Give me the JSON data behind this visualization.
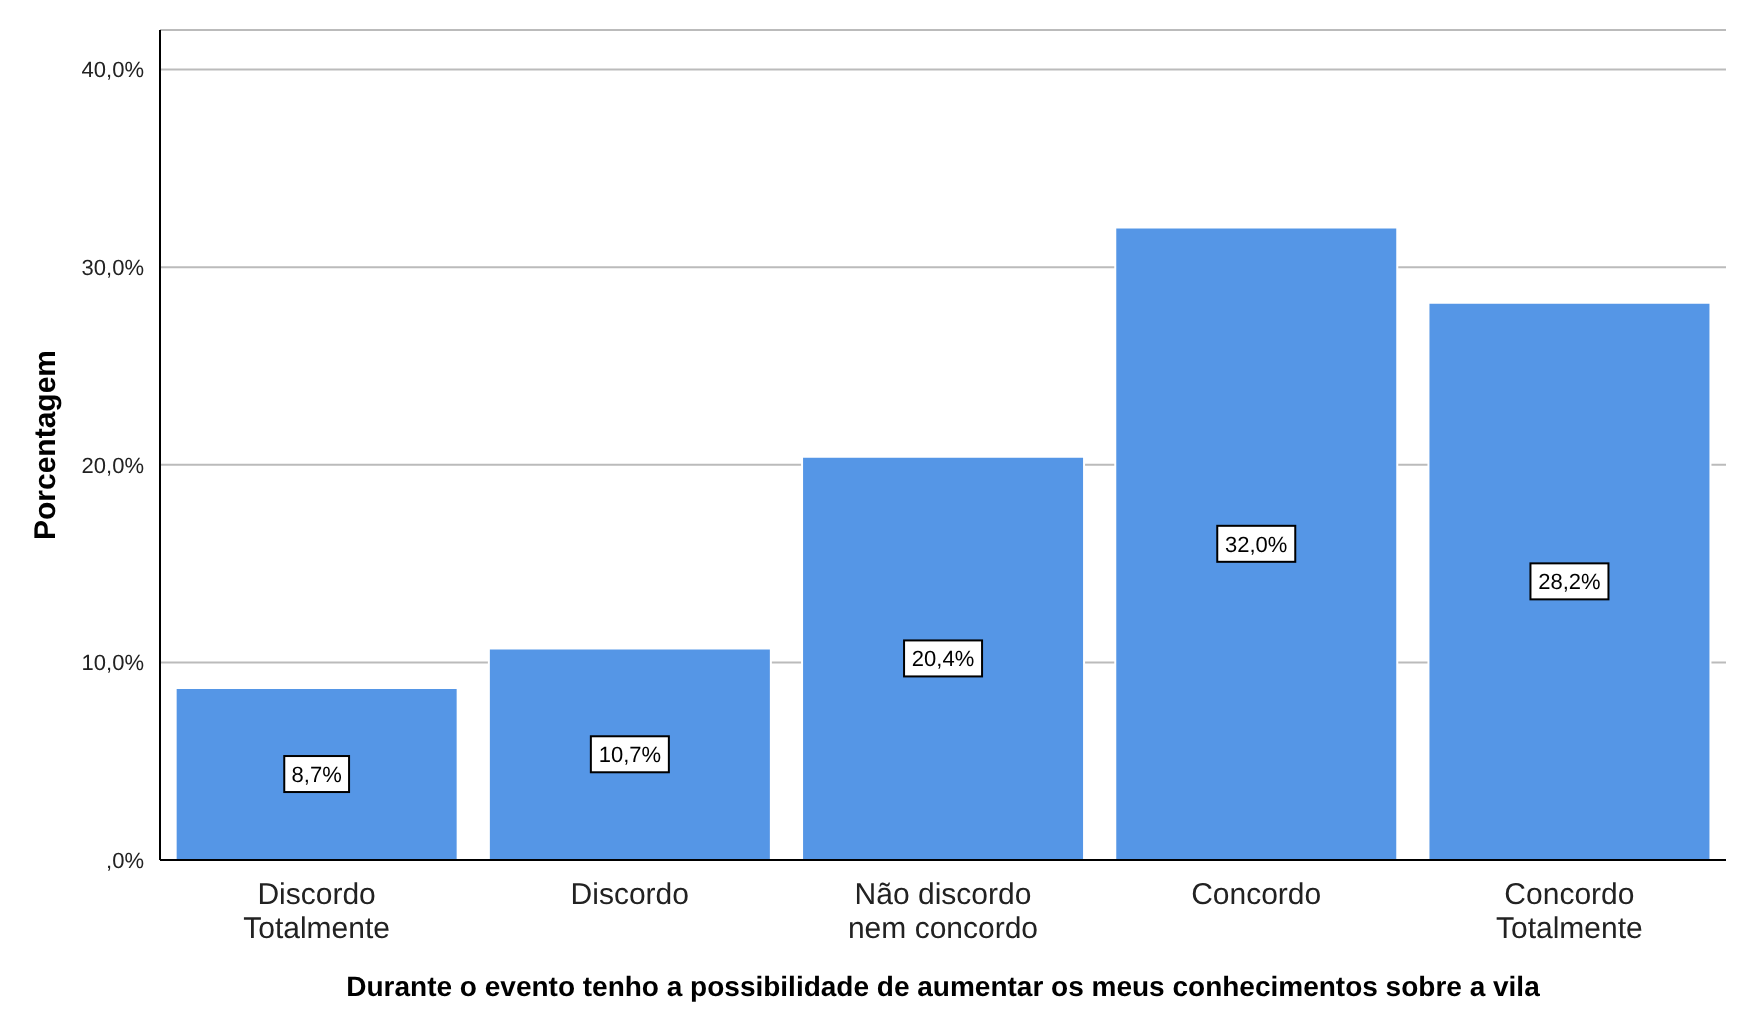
{
  "chart_data": {
    "type": "bar",
    "ylabel": "Porcentagem",
    "xlabel": "Durante o evento tenho a possibilidade de aumentar os meus conhecimentos sobre a vila",
    "categories": [
      "Discordo Totalmente",
      "Discordo",
      "Não discordo nem concordo",
      "Concordo",
      "Concordo Totalmente"
    ],
    "values": [
      8.7,
      10.7,
      20.4,
      32.0,
      28.2
    ],
    "value_labels": [
      "8,7%",
      "10,7%",
      "20,4%",
      "32,0%",
      "28,2%"
    ],
    "color": "#5596e6",
    "ylim": [
      0,
      42
    ],
    "yticks": [
      {
        "value": 0,
        "label": ",0%"
      },
      {
        "value": 10,
        "label": "10,0%"
      },
      {
        "value": 20,
        "label": "20,0%"
      },
      {
        "value": 30,
        "label": "30,0%"
      },
      {
        "value": 40,
        "label": "40,0%"
      }
    ],
    "grid": "y"
  }
}
